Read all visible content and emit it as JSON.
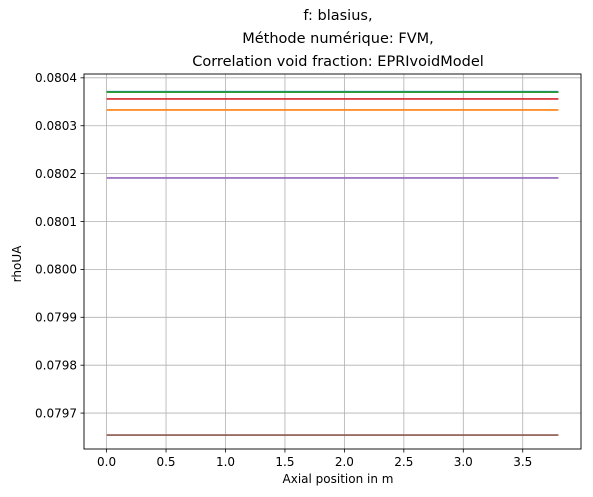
{
  "chart_data": {
    "type": "line",
    "title_lines": [
      "f: blasius,",
      "Méthode numérique: FVM,",
      "Correlation void fraction: EPRIvoidModel"
    ],
    "xlabel": "Axial position in m",
    "ylabel": "rhoUA",
    "xlim": [
      -0.19,
      3.99
    ],
    "ylim": [
      0.079625,
      0.080408
    ],
    "x_ticks": [
      0.0,
      0.5,
      1.0,
      1.5,
      2.0,
      2.5,
      3.0,
      3.5
    ],
    "x_tick_labels": [
      "0.0",
      "0.5",
      "1.0",
      "1.5",
      "2.0",
      "2.5",
      "3.0",
      "3.5"
    ],
    "y_ticks": [
      0.0797,
      0.0798,
      0.0799,
      0.08,
      0.0801,
      0.0802,
      0.0803,
      0.0804
    ],
    "y_tick_labels": [
      "0.0797",
      "0.0798",
      "0.0799",
      "0.0800",
      "0.0801",
      "0.0802",
      "0.0803",
      "0.0804"
    ],
    "grid": true,
    "series": [
      {
        "x": [
          0.0,
          3.8
        ],
        "values": [
          0.080371,
          0.080371
        ],
        "color": "#1f77b4"
      },
      {
        "x": [
          0.0,
          3.8
        ],
        "values": [
          0.080333,
          0.080333
        ],
        "color": "#ff7f0e"
      },
      {
        "x": [
          0.0,
          3.8
        ],
        "values": [
          0.08037,
          0.08037
        ],
        "color": "#2ca02c"
      },
      {
        "x": [
          0.0,
          3.8
        ],
        "values": [
          0.080356,
          0.080356
        ],
        "color": "#d62728"
      },
      {
        "x": [
          0.0,
          3.8
        ],
        "values": [
          0.080191,
          0.080191
        ],
        "color": "#9467bd"
      },
      {
        "x": [
          0.0,
          3.8
        ],
        "values": [
          0.079654,
          0.079654
        ],
        "color": "#8c564b"
      }
    ]
  }
}
